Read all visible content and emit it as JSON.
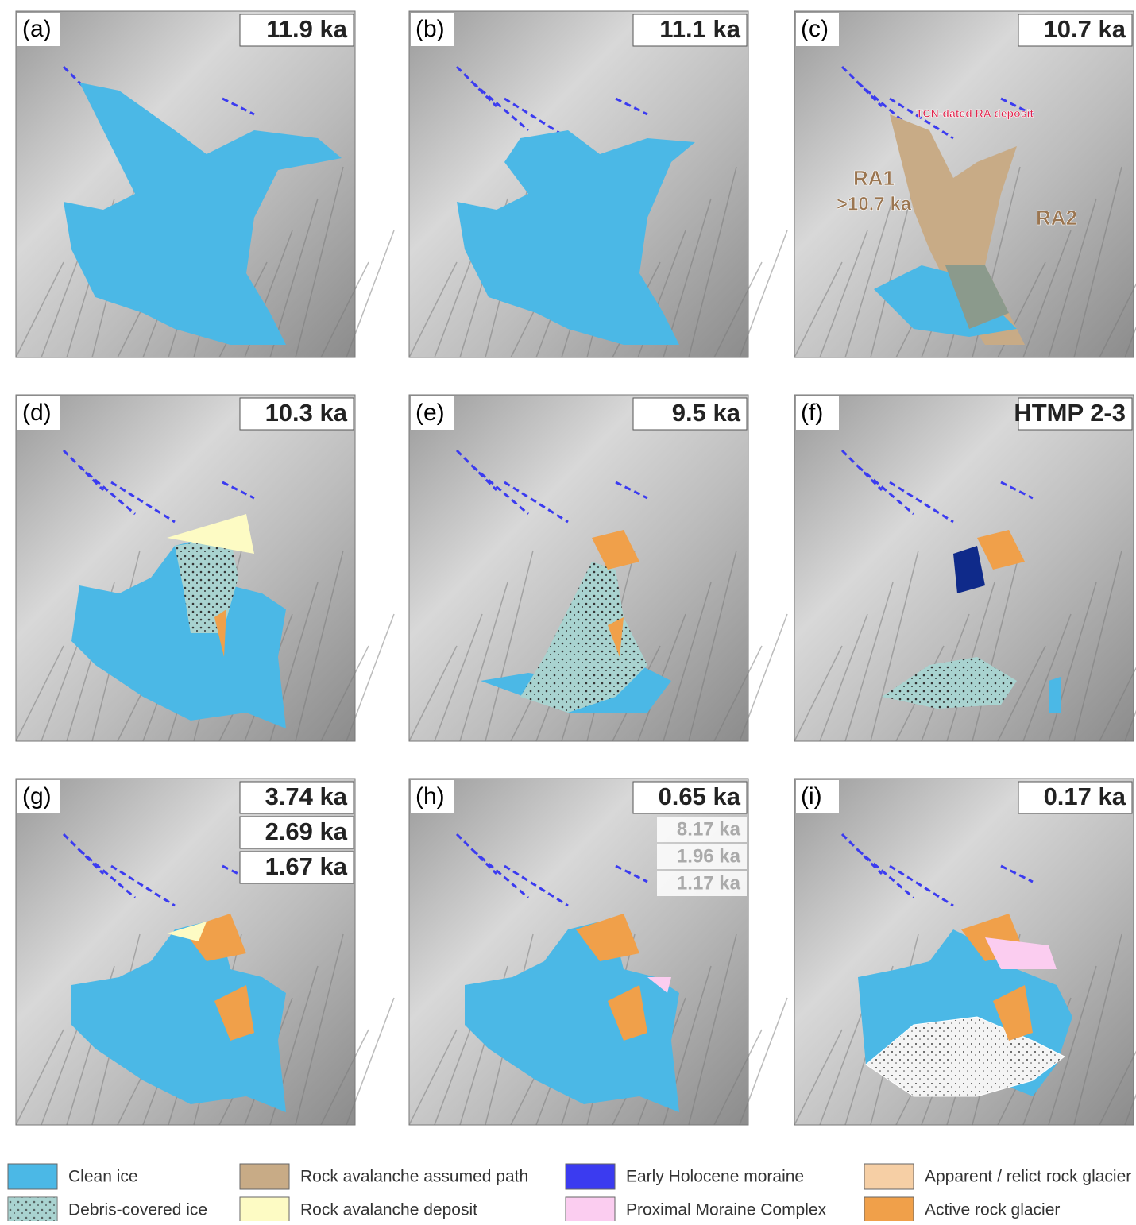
{
  "panels": [
    {
      "label": "(a)",
      "ages": [
        "11.9 ka"
      ]
    },
    {
      "label": "(b)",
      "ages": [
        "11.1 ka"
      ]
    },
    {
      "label": "(c)",
      "ages": [
        "10.7 ka"
      ],
      "annotations": [
        "TCN-dated RA deposit",
        "RA1",
        ">10.7 ka",
        "RA2"
      ]
    },
    {
      "label": "(d)",
      "ages": [
        "10.3 ka"
      ]
    },
    {
      "label": "(e)",
      "ages": [
        "9.5 ka"
      ]
    },
    {
      "label": "(f)",
      "ages": [
        "HTMP 2-3"
      ]
    },
    {
      "label": "(g)",
      "ages": [
        "3.74 ka",
        "2.69 ka",
        "1.67 ka"
      ]
    },
    {
      "label": "(h)",
      "ages": [
        "0.65 ka"
      ],
      "secondary_ages": [
        "8.17 ka",
        "1.96 ka",
        "1.17 ka"
      ]
    },
    {
      "label": "(i)",
      "ages": [
        "0.17 ka"
      ]
    }
  ],
  "legend": [
    {
      "label": "Clean ice",
      "color": "#4bb8e6"
    },
    {
      "label": "Debris-covered ice",
      "color": "#a9d3d0"
    },
    {
      "label": "Rock avalanche assumed path",
      "color": "#c8ab86"
    },
    {
      "label": "Rock avalanche deposit",
      "color": "#fdfbc4"
    },
    {
      "label": "Early Holocene moraine",
      "color": "#3b3bf0"
    },
    {
      "label": "Proximal Moraine Complex",
      "color": "#fbcdf0"
    },
    {
      "label": "Apparent / relict rock glacier",
      "color": "#f6cfa5"
    },
    {
      "label": "Active rock glacier",
      "color": "#f0a04a"
    }
  ]
}
